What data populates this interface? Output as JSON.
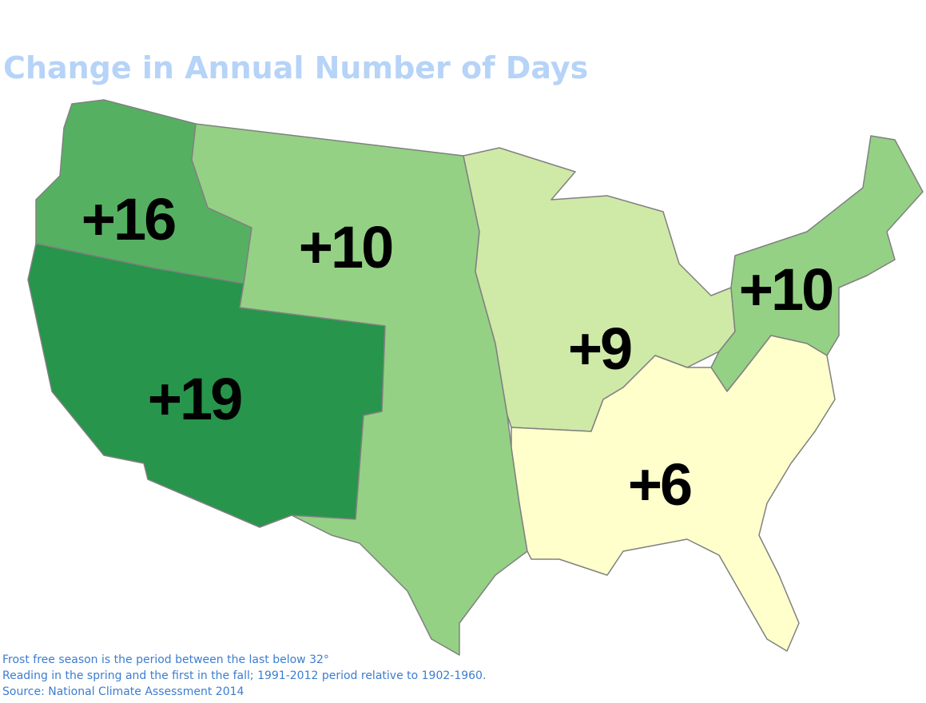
{
  "title": "Change in Annual Number of Days",
  "regions": [
    {
      "label": "+16",
      "color": "#56b062"
    },
    {
      "label": "+19",
      "color": "#27954b"
    },
    {
      "label": "+10",
      "color": "#94d184"
    },
    {
      "label": "+9",
      "color": "#cfe9a7"
    },
    {
      "label": "+10",
      "color": "#94d184"
    },
    {
      "label": "+6",
      "color": "#ffffcc"
    }
  ],
  "footnotes": [
    "Frost free season is the period between the last below 32°",
    "Reading in the spring and the first in the fall; 1991-2012 period relative to 1902-1960.",
    "Source: National Climate Assessment 2014"
  ]
}
